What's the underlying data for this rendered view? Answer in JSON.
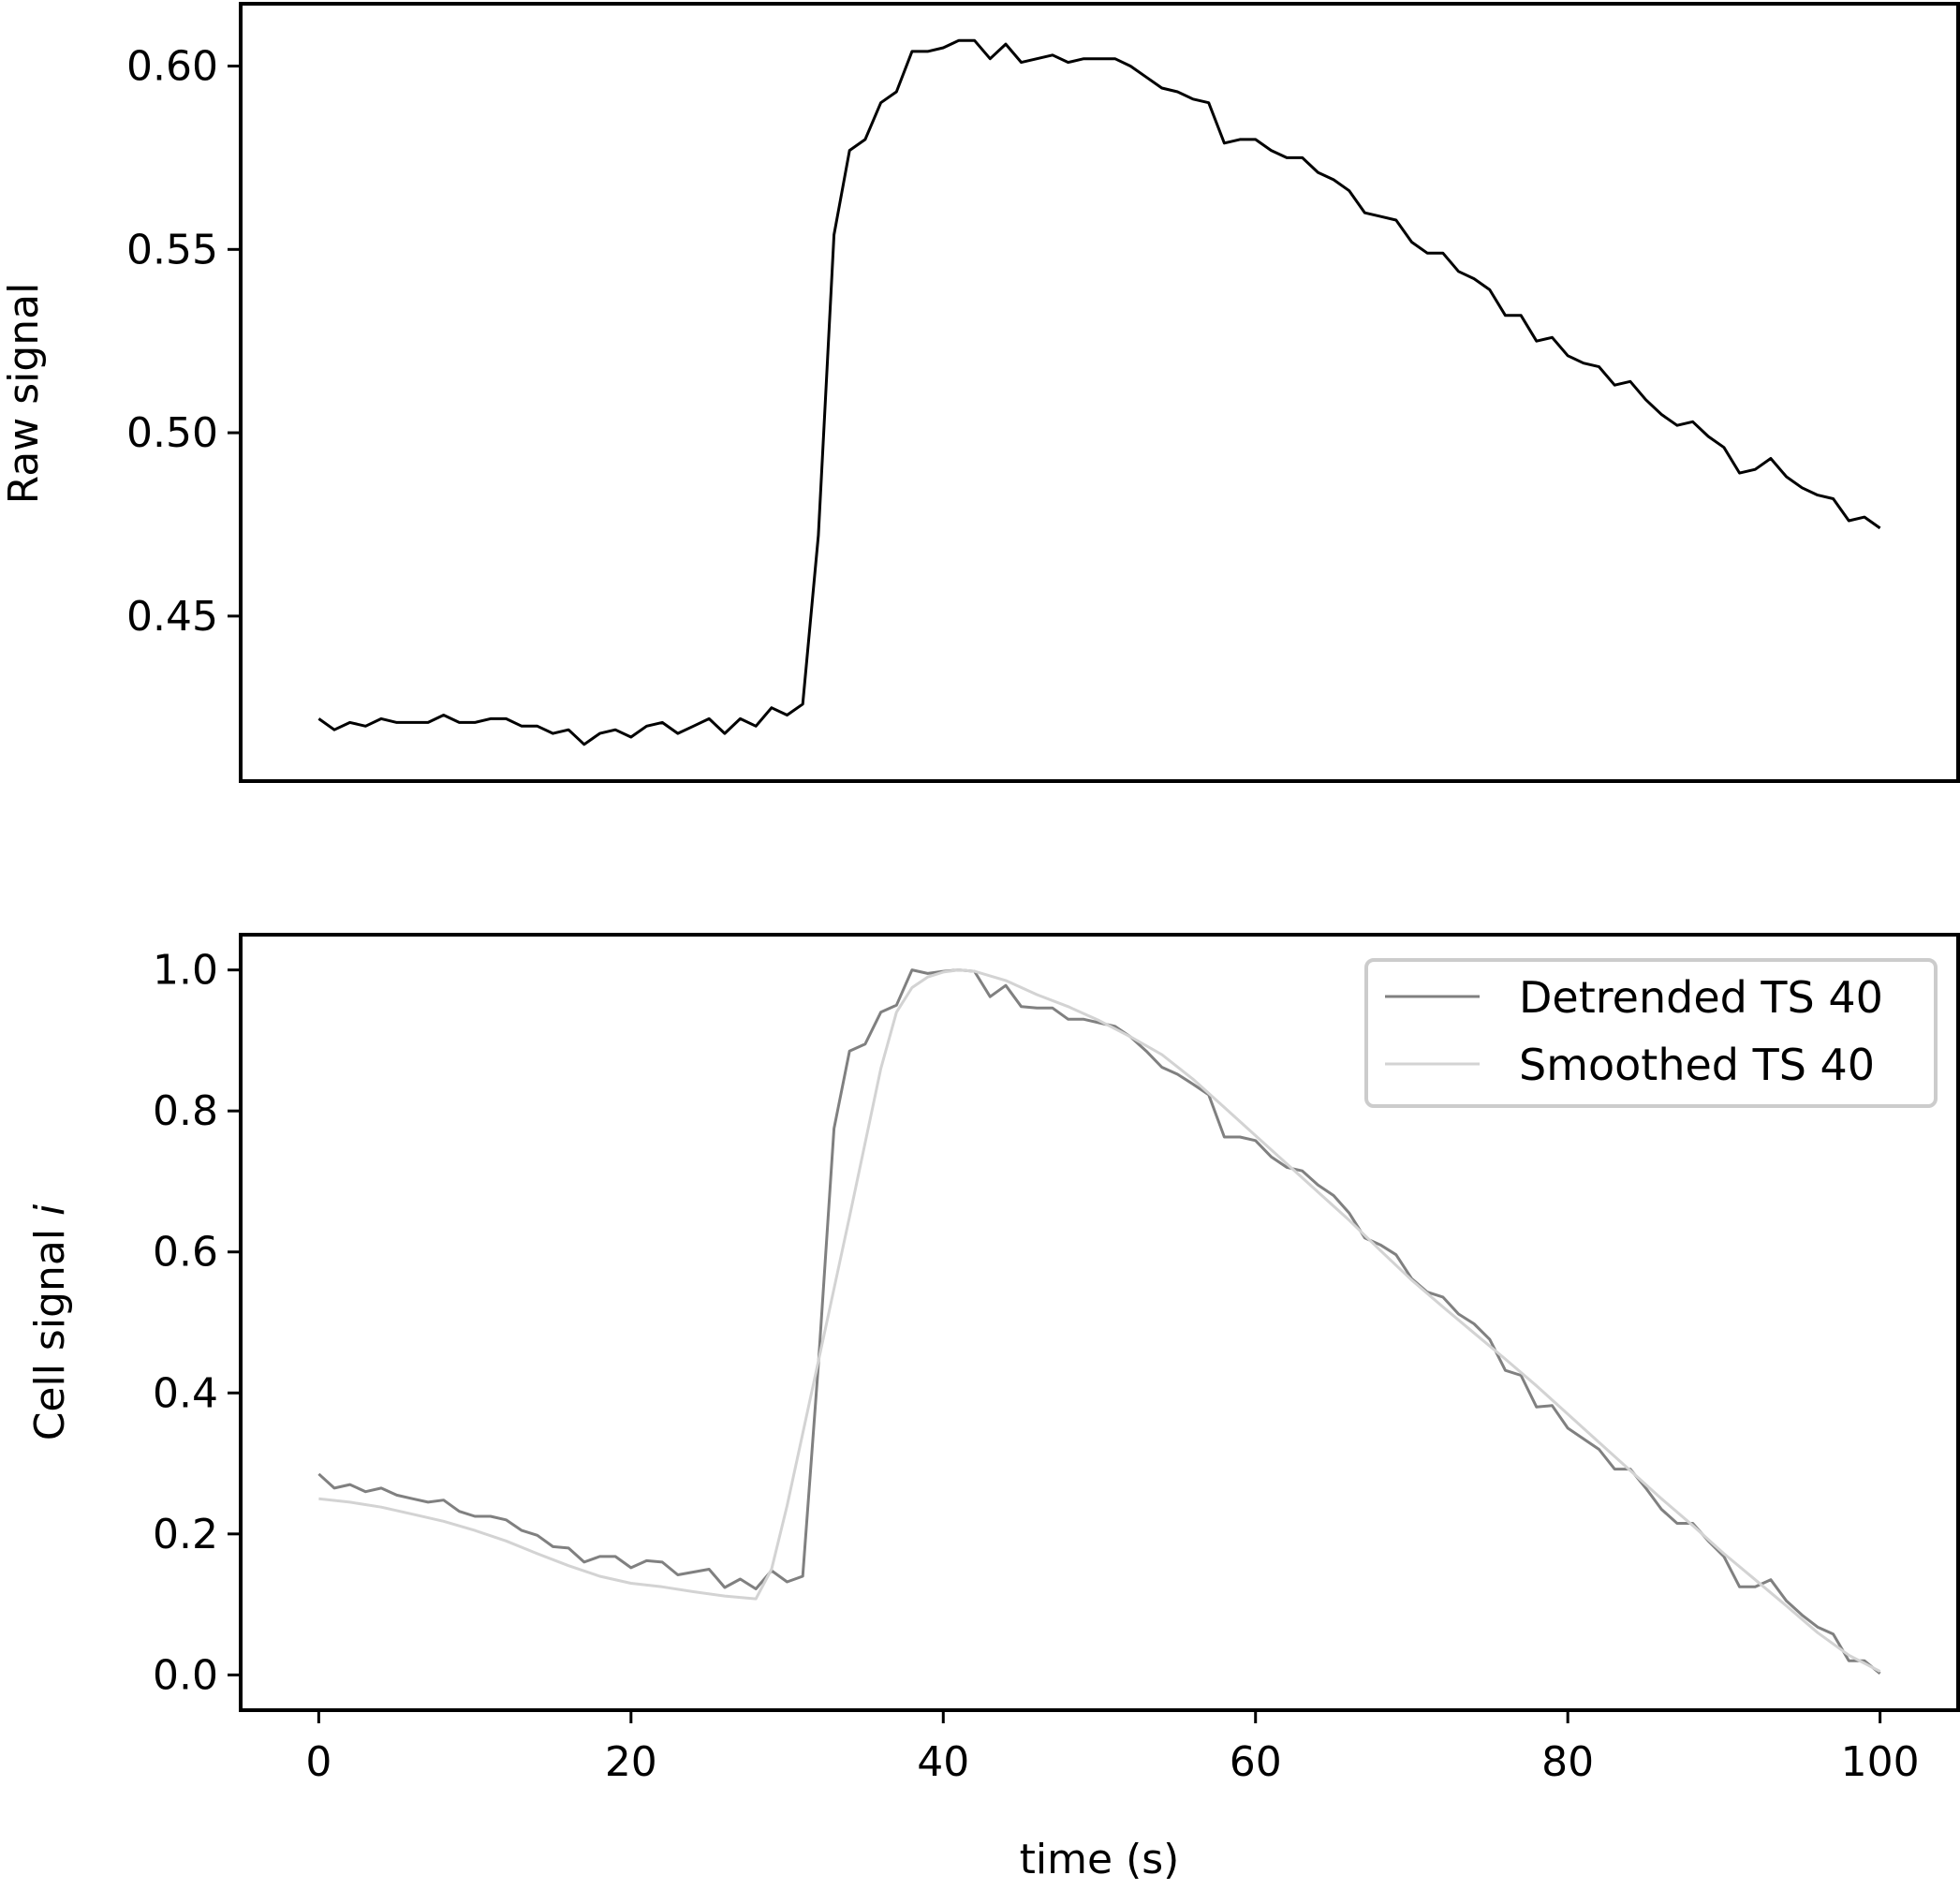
{
  "chart_data": [
    {
      "type": "line",
      "ylabel": "Raw signal",
      "xlim": [
        -5,
        105
      ],
      "ylim": [
        0.405,
        0.617
      ],
      "yticks": [
        0.45,
        0.5,
        0.55,
        0.6
      ],
      "ytick_labels": [
        "0.45",
        "0.50",
        "0.55",
        "0.60"
      ],
      "show_xticks": false,
      "series": [
        {
          "color": "#000000",
          "x": [
            0,
            1,
            2,
            3,
            4,
            5,
            6,
            7,
            8,
            9,
            10,
            11,
            12,
            13,
            14,
            15,
            16,
            17,
            18,
            19,
            20,
            21,
            22,
            23,
            24,
            25,
            26,
            27,
            28,
            29,
            30,
            31,
            32,
            33,
            34,
            35,
            36,
            37,
            38,
            39,
            40,
            41,
            42,
            43,
            44,
            45,
            46,
            47,
            48,
            49,
            50,
            51,
            52,
            53,
            54,
            55,
            56,
            57,
            58,
            59,
            60,
            61,
            62,
            63,
            64,
            65,
            66,
            67,
            68,
            69,
            70,
            71,
            72,
            73,
            74,
            75,
            76,
            77,
            78,
            79,
            80,
            81,
            82,
            83,
            84,
            85,
            86,
            87,
            88,
            89,
            90,
            91,
            92,
            93,
            94,
            95,
            96,
            97,
            98,
            99,
            100
          ],
          "y": [
            0.422,
            0.419,
            0.421,
            0.42,
            0.422,
            0.421,
            0.421,
            0.421,
            0.423,
            0.421,
            0.421,
            0.422,
            0.422,
            0.42,
            0.42,
            0.418,
            0.419,
            0.415,
            0.418,
            0.419,
            0.417,
            0.42,
            0.421,
            0.418,
            0.42,
            0.422,
            0.418,
            0.422,
            0.42,
            0.425,
            0.423,
            0.426,
            0.472,
            0.554,
            0.577,
            0.58,
            0.59,
            0.593,
            0.604,
            0.604,
            0.605,
            0.607,
            0.607,
            0.602,
            0.606,
            0.601,
            0.602,
            0.603,
            0.601,
            0.602,
            0.602,
            0.602,
            0.6,
            0.597,
            0.594,
            0.593,
            0.591,
            0.59,
            0.579,
            0.58,
            0.58,
            0.577,
            0.575,
            0.575,
            0.571,
            0.569,
            0.566,
            0.56,
            0.559,
            0.558,
            0.552,
            0.549,
            0.549,
            0.544,
            0.542,
            0.539,
            0.532,
            0.532,
            0.525,
            0.526,
            0.521,
            0.519,
            0.518,
            0.513,
            0.514,
            0.509,
            0.505,
            0.502,
            0.503,
            0.499,
            0.496,
            0.489,
            0.49,
            0.493,
            0.488,
            0.485,
            0.483,
            0.482,
            0.476,
            0.477,
            0.474
          ]
        }
      ]
    },
    {
      "type": "line",
      "xlabel": "time (s)",
      "ylabel": "Cell signal i",
      "ylabel_main": "Cell signal ",
      "ylabel_var": "i",
      "xlim": [
        -5,
        105
      ],
      "ylim": [
        -0.05,
        1.05
      ],
      "xticks": [
        0,
        20,
        40,
        60,
        80,
        100
      ],
      "xtick_labels": [
        "0",
        "20",
        "40",
        "60",
        "80",
        "100"
      ],
      "yticks": [
        0.0,
        0.2,
        0.4,
        0.6,
        0.8,
        1.0
      ],
      "ytick_labels": [
        "0.0",
        "0.2",
        "0.4",
        "0.6",
        "0.8",
        "1.0"
      ],
      "legend_position": "top-right",
      "series": [
        {
          "name": "Detrended TS 40",
          "color": "#808080",
          "x": [
            0,
            1,
            2,
            3,
            4,
            5,
            6,
            7,
            8,
            9,
            10,
            11,
            12,
            13,
            14,
            15,
            16,
            17,
            18,
            19,
            20,
            21,
            22,
            23,
            24,
            25,
            26,
            27,
            28,
            29,
            30,
            31,
            32,
            33,
            34,
            35,
            36,
            37,
            38,
            39,
            40,
            41,
            42,
            43,
            44,
            45,
            46,
            47,
            48,
            49,
            50,
            51,
            52,
            53,
            54,
            55,
            56,
            57,
            58,
            59,
            60,
            61,
            62,
            63,
            64,
            65,
            66,
            67,
            68,
            69,
            70,
            71,
            72,
            73,
            74,
            75,
            76,
            77,
            78,
            79,
            80,
            81,
            82,
            83,
            84,
            85,
            86,
            87,
            88,
            89,
            90,
            91,
            92,
            93,
            94,
            95,
            96,
            97,
            98,
            99,
            100
          ],
          "y": [
            0.285,
            0.265,
            0.27,
            0.26,
            0.265,
            0.255,
            0.25,
            0.245,
            0.248,
            0.232,
            0.225,
            0.225,
            0.22,
            0.205,
            0.198,
            0.182,
            0.18,
            0.16,
            0.168,
            0.168,
            0.152,
            0.162,
            0.16,
            0.142,
            0.146,
            0.15,
            0.124,
            0.136,
            0.122,
            0.148,
            0.132,
            0.14,
            0.44,
            0.775,
            0.885,
            0.895,
            0.94,
            0.95,
            1.0,
            0.995,
            0.998,
            1.0,
            0.998,
            0.962,
            0.978,
            0.948,
            0.946,
            0.946,
            0.93,
            0.93,
            0.925,
            0.92,
            0.905,
            0.885,
            0.862,
            0.852,
            0.838,
            0.823,
            0.763,
            0.763,
            0.758,
            0.735,
            0.72,
            0.715,
            0.695,
            0.68,
            0.655,
            0.62,
            0.61,
            0.596,
            0.562,
            0.543,
            0.536,
            0.512,
            0.498,
            0.476,
            0.432,
            0.425,
            0.38,
            0.382,
            0.35,
            0.335,
            0.32,
            0.292,
            0.292,
            0.265,
            0.235,
            0.215,
            0.215,
            0.19,
            0.168,
            0.125,
            0.125,
            0.135,
            0.105,
            0.085,
            0.068,
            0.058,
            0.02,
            0.02,
            0.002
          ]
        },
        {
          "name": "Smoothed TS 40",
          "color": "#d3d3d3",
          "x": [
            0,
            2,
            4,
            6,
            8,
            10,
            12,
            14,
            16,
            18,
            20,
            22,
            24,
            26,
            27,
            28,
            29,
            30,
            32,
            34,
            36,
            37,
            38,
            39,
            40,
            41,
            42,
            44,
            46,
            48,
            50,
            52,
            54,
            56,
            58,
            60,
            62,
            64,
            66,
            68,
            70,
            72,
            74,
            76,
            78,
            80,
            82,
            84,
            86,
            88,
            90,
            92,
            94,
            96,
            98,
            100
          ],
          "y": [
            0.25,
            0.245,
            0.238,
            0.228,
            0.218,
            0.205,
            0.19,
            0.172,
            0.155,
            0.14,
            0.13,
            0.125,
            0.118,
            0.112,
            0.11,
            0.108,
            0.15,
            0.24,
            0.445,
            0.65,
            0.86,
            0.94,
            0.975,
            0.99,
            0.997,
            1.0,
            0.998,
            0.985,
            0.965,
            0.948,
            0.928,
            0.905,
            0.88,
            0.845,
            0.805,
            0.765,
            0.725,
            0.685,
            0.645,
            0.602,
            0.56,
            0.522,
            0.485,
            0.448,
            0.41,
            0.37,
            0.33,
            0.29,
            0.25,
            0.212,
            0.172,
            0.135,
            0.098,
            0.06,
            0.028,
            0.005
          ]
        }
      ]
    }
  ]
}
